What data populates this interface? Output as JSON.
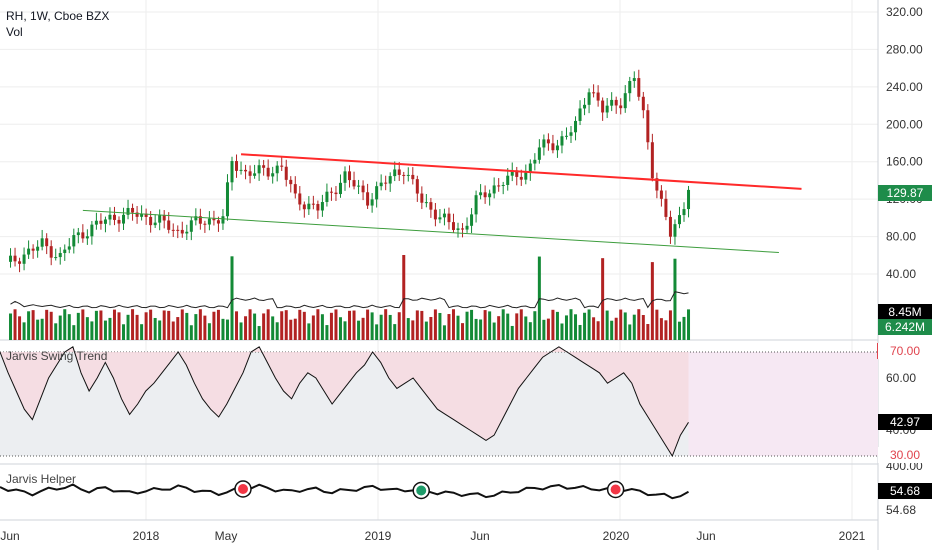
{
  "header": {
    "symbol_line": "RH, 1W, Cboe BZX",
    "vol_label": "Vol"
  },
  "colors": {
    "up": "#138a36",
    "down": "#b22222",
    "red_line": "#ff2a2a",
    "green_line": "#3d9d3d",
    "osc_fill": "#f8d7de",
    "axis_text": "#333333",
    "grid": "#eeeeee"
  },
  "price_axis": {
    "ticks": [
      "320.00",
      "280.00",
      "240.00",
      "200.00",
      "160.00",
      "120.00",
      "80.00",
      "40.00"
    ],
    "current": "129.87"
  },
  "volume_axis": {
    "ma_value": "8.45M",
    "current": "6.242M"
  },
  "oscillator": {
    "title": "Jarvis Swing Trend",
    "ticks": [
      "70.00",
      "60.00",
      "40.00",
      "30.00"
    ],
    "current": "42.97"
  },
  "helper": {
    "title": "Jarvis Helper",
    "ticks": [
      "400.00"
    ],
    "current": "54.68",
    "secondary": "54.68"
  },
  "time_axis": {
    "ticks": [
      "Jun",
      "2018",
      "May",
      "2019",
      "Jun",
      "2020",
      "Jun",
      "2021"
    ]
  },
  "chart_data": [
    {
      "type": "candlestick",
      "title": "RH, 1W, Cboe BZX",
      "ylim": [
        20,
        330
      ],
      "yticks": [
        40,
        80,
        120,
        160,
        200,
        240,
        280,
        320
      ],
      "anchors_x": [
        "Jun",
        "2018",
        "May",
        "2019",
        "Jun",
        "2020",
        "Jun",
        "2021"
      ],
      "close_path": [
        {
          "week": 0,
          "close": 50
        },
        {
          "week": 8,
          "close": 72
        },
        {
          "week": 12,
          "close": 58
        },
        {
          "week": 15,
          "close": 78
        },
        {
          "week": 22,
          "close": 98
        },
        {
          "week": 28,
          "close": 105
        },
        {
          "week": 34,
          "close": 96
        },
        {
          "week": 38,
          "close": 85
        },
        {
          "week": 42,
          "close": 95
        },
        {
          "week": 48,
          "close": 100
        },
        {
          "week": 50,
          "close": 160
        },
        {
          "week": 53,
          "close": 148
        },
        {
          "week": 58,
          "close": 150
        },
        {
          "week": 61,
          "close": 155
        },
        {
          "week": 64,
          "close": 120
        },
        {
          "week": 69,
          "close": 110
        },
        {
          "week": 75,
          "close": 145
        },
        {
          "week": 80,
          "close": 120
        },
        {
          "week": 86,
          "close": 148
        },
        {
          "week": 88,
          "close": 152
        },
        {
          "week": 92,
          "close": 118
        },
        {
          "week": 98,
          "close": 93
        },
        {
          "week": 101,
          "close": 86
        },
        {
          "week": 104,
          "close": 118
        },
        {
          "week": 110,
          "close": 140
        },
        {
          "week": 115,
          "close": 148
        },
        {
          "week": 118,
          "close": 175
        },
        {
          "week": 122,
          "close": 180
        },
        {
          "week": 126,
          "close": 198
        },
        {
          "week": 129,
          "close": 240
        },
        {
          "week": 132,
          "close": 215
        },
        {
          "week": 136,
          "close": 225
        },
        {
          "week": 139,
          "close": 250
        },
        {
          "week": 141,
          "close": 210
        },
        {
          "week": 143,
          "close": 150
        },
        {
          "week": 145,
          "close": 115
        },
        {
          "week": 147,
          "close": 82
        },
        {
          "week": 149,
          "close": 100
        },
        {
          "week": 151,
          "close": 129.87
        }
      ],
      "trendlines": [
        {
          "name": "",
          "color": "red",
          "from": {
            "week": 52,
            "price": 168
          },
          "to": {
            "week": 176,
            "price": 131
          }
        },
        {
          "name": "",
          "color": "green",
          "from": {
            "week": 17,
            "price": 108
          },
          "to": {
            "week": 171,
            "price": 63
          }
        }
      ],
      "last_close": 129.87
    },
    {
      "type": "bar",
      "title": "Vol",
      "current": 6.242,
      "ma": 8.45,
      "unit": "M"
    },
    {
      "type": "line",
      "title": "Jarvis Swing Trend",
      "ylim": [
        28,
        72
      ],
      "bands": [
        30,
        70
      ],
      "values": [
        70,
        62,
        55,
        48,
        44,
        52,
        60,
        65,
        70,
        72,
        62,
        55,
        60,
        66,
        60,
        52,
        46,
        50,
        55,
        58,
        62,
        66,
        70,
        65,
        58,
        52,
        48,
        45,
        50,
        56,
        62,
        70,
        72,
        66,
        60,
        55,
        52,
        58,
        62,
        60,
        55,
        50,
        54,
        58,
        62,
        65,
        70,
        66,
        60,
        56,
        58,
        60,
        56,
        52,
        48,
        46,
        44,
        42,
        40,
        38,
        36,
        38,
        44,
        50,
        56,
        60,
        64,
        68,
        70,
        72,
        70,
        68,
        66,
        64,
        62,
        58,
        60,
        62,
        58,
        50,
        45,
        40,
        35,
        30,
        38,
        42.97
      ],
      "last": 42.97
    },
    {
      "type": "line",
      "title": "Jarvis Helper",
      "last": 54.68,
      "markers": [
        {
          "index": 30,
          "color": "red"
        },
        {
          "index": 52,
          "color": "green"
        },
        {
          "index": 76,
          "color": "red"
        }
      ]
    }
  ]
}
